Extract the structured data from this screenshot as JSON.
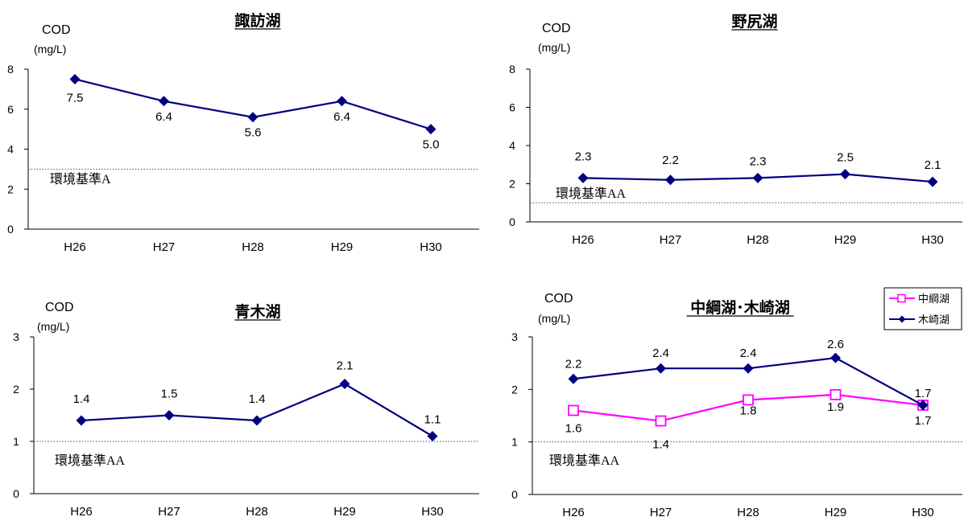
{
  "x_categories": [
    "H26",
    "H27",
    "H28",
    "H29",
    "H30"
  ],
  "y_axis_title": "COD",
  "y_axis_unit": "(mg/L)",
  "colors": {
    "navy": "#000080",
    "magenta": "#ff00ff",
    "axis": "#000000",
    "standard_line": "#555555"
  },
  "chart_data": [
    {
      "type": "line",
      "title": "諏訪湖",
      "categories": [
        "H26",
        "H27",
        "H28",
        "H29",
        "H30"
      ],
      "ylim": [
        0,
        8
      ],
      "yticks": [
        0,
        2,
        4,
        6,
        8
      ],
      "series": [
        {
          "values": [
            7.5,
            6.4,
            5.6,
            6.4,
            5.0
          ],
          "labels": [
            "7.5",
            "6.4",
            "5.6",
            "6.4",
            "5.0"
          ],
          "color": "#000080",
          "marker": "diamond"
        }
      ],
      "standard": {
        "value": 3,
        "label": "環境基準A"
      }
    },
    {
      "type": "line",
      "title": "野尻湖",
      "categories": [
        "H26",
        "H27",
        "H28",
        "H29",
        "H30"
      ],
      "ylim": [
        0,
        8
      ],
      "yticks": [
        0,
        2,
        4,
        6,
        8
      ],
      "series": [
        {
          "values": [
            2.3,
            2.2,
            2.3,
            2.5,
            2.1
          ],
          "labels": [
            "2.3",
            "2.2",
            "2.3",
            "2.5",
            "2.1"
          ],
          "color": "#000080",
          "marker": "diamond"
        }
      ],
      "standard": {
        "value": 1,
        "label": "環境基準AA"
      }
    },
    {
      "type": "line",
      "title": "青木湖",
      "categories": [
        "H26",
        "H27",
        "H28",
        "H29",
        "H30"
      ],
      "ylim": [
        0,
        3
      ],
      "yticks": [
        0,
        1,
        2,
        3
      ],
      "series": [
        {
          "values": [
            1.4,
            1.5,
            1.4,
            2.1,
            1.1
          ],
          "labels": [
            "1.4",
            "1.5",
            "1.4",
            "2.1",
            "1.1"
          ],
          "color": "#000080",
          "marker": "diamond"
        }
      ],
      "standard": {
        "value": 1,
        "label": "環境基準AA"
      }
    },
    {
      "type": "line",
      "title": "中綱湖･木崎湖",
      "categories": [
        "H26",
        "H27",
        "H28",
        "H29",
        "H30"
      ],
      "ylim": [
        0,
        3
      ],
      "yticks": [
        0,
        1,
        2,
        3
      ],
      "series": [
        {
          "name": "中綱湖",
          "values": [
            1.6,
            1.4,
            1.8,
            1.9,
            1.7
          ],
          "labels": [
            "1.6",
            "1.4",
            "1.8",
            "1.9",
            "1.7"
          ],
          "color": "#ff00ff",
          "marker": "square-open"
        },
        {
          "name": "木崎湖",
          "values": [
            2.2,
            2.4,
            2.4,
            2.6,
            1.7
          ],
          "labels": [
            "2.2",
            "2.4",
            "2.4",
            "2.6",
            "1.7"
          ],
          "color": "#000080",
          "marker": "diamond"
        }
      ],
      "standard": {
        "value": 1,
        "label": "環境基準AA"
      },
      "legend": "top-right"
    }
  ]
}
